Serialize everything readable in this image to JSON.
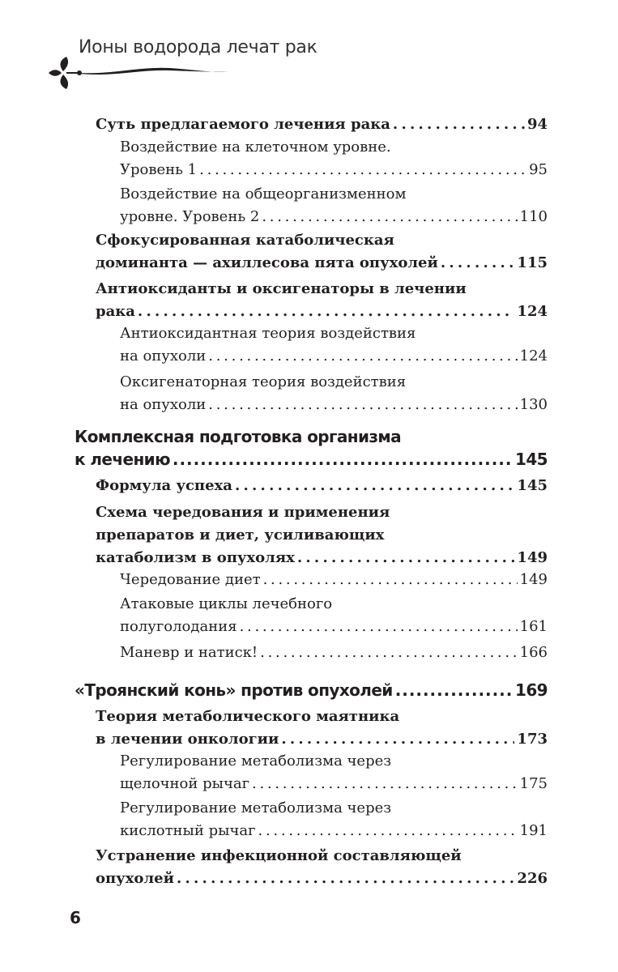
{
  "running_head": "Ионы водорода лечат рак",
  "page_number": "6",
  "toc": [
    {
      "level": 2,
      "lines": [
        "Суть предлагаемого лечения рака"
      ],
      "page": "94"
    },
    {
      "level": 3,
      "lines": [
        "Воздействие на клеточном уровне.",
        "Уровень 1"
      ],
      "page": "95"
    },
    {
      "level": 3,
      "lines": [
        "Воздействие на общеорганизменном",
        "уровне. Уровень 2"
      ],
      "page": "110"
    },
    {
      "level": 2,
      "lines": [
        "Сфокусированная катаболическая",
        "доминанта — ахиллесова пята опухолей"
      ],
      "page": "115"
    },
    {
      "level": 2,
      "lines": [
        "Антиоксиданты и оксигенаторы в лечении",
        "рака"
      ],
      "page": "124"
    },
    {
      "level": 3,
      "lines": [
        "Антиоксидантная теория воздействия",
        "на опухоли"
      ],
      "page": "124"
    },
    {
      "level": 3,
      "lines": [
        "Оксигенаторная теория воздействия",
        "на опухоли"
      ],
      "page": "130"
    },
    {
      "level": 1,
      "lines": [
        "Комплексная подготовка организма",
        "к лечению"
      ],
      "page": "145"
    },
    {
      "level": 2,
      "lines": [
        "Формула успеха"
      ],
      "page": "145"
    },
    {
      "level": 2,
      "lines": [
        "Схема чередования и применения",
        "препаратов и диет, усиливающих",
        "катаболизм в опухолях"
      ],
      "page": "149"
    },
    {
      "level": 3,
      "lines": [
        "Чередование диет"
      ],
      "page": "149"
    },
    {
      "level": 3,
      "lines": [
        "Атаковые циклы лечебного",
        "полуголодания"
      ],
      "page": "161"
    },
    {
      "level": 3,
      "lines": [
        "Маневр и натиск!"
      ],
      "page": "166"
    },
    {
      "level": 1,
      "lines": [
        "«Троянский конь» против опухолей"
      ],
      "page": "169"
    },
    {
      "level": 2,
      "lines": [
        "Теория метаболического маятника",
        "в лечении онкологии"
      ],
      "page": "173"
    },
    {
      "level": 3,
      "lines": [
        "Регулирование метаболизма через",
        "щелочной рычаг"
      ],
      "page": "175"
    },
    {
      "level": 3,
      "lines": [
        "Регулирование метаболизма через",
        "кислотный рычаг"
      ],
      "page": "191"
    },
    {
      "level": 2,
      "lines": [
        "Устранение инфекционной составляющей",
        "опухолей"
      ],
      "page": "226"
    }
  ]
}
